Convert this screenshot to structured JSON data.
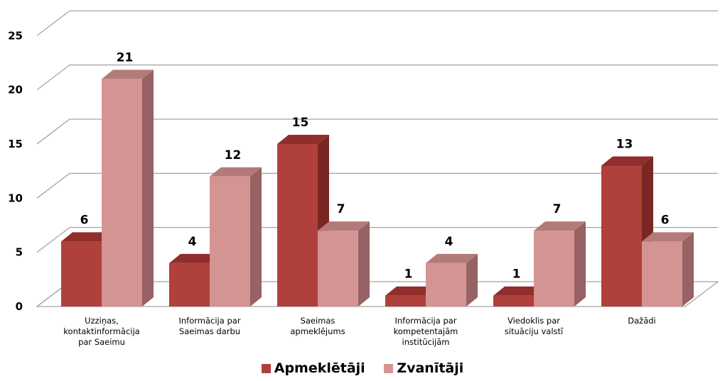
{
  "chart_data": {
    "type": "bar",
    "categories": [
      [
        "Uzziņas,",
        "kontaktinformācija",
        "par Saeimu"
      ],
      [
        "Informācija par",
        "Saeimas darbu"
      ],
      [
        "Saeimas",
        "apmeklējums"
      ],
      [
        "Informācija par",
        "kompetentajām",
        "institūcijām"
      ],
      [
        "Viedoklis par",
        "situāciju valstī"
      ],
      [
        "Dažādi"
      ]
    ],
    "series": [
      {
        "name": "Apmeklētāji",
        "values": [
          6,
          4,
          15,
          1,
          1,
          13
        ],
        "color": "#b0403c",
        "side_color": "#7a2624",
        "top_color": "#8f2e2b"
      },
      {
        "name": "Zvanītāji",
        "values": [
          21,
          12,
          7,
          4,
          7,
          6
        ],
        "color": "#d49493",
        "side_color": "#966263",
        "top_color": "#b47a79"
      }
    ],
    "ylim": [
      0,
      25
    ],
    "yticks": [
      "0",
      "5",
      "10",
      "15",
      "20",
      "25"
    ],
    "grid": true,
    "legend_position": "bottom",
    "data_labels": true
  }
}
